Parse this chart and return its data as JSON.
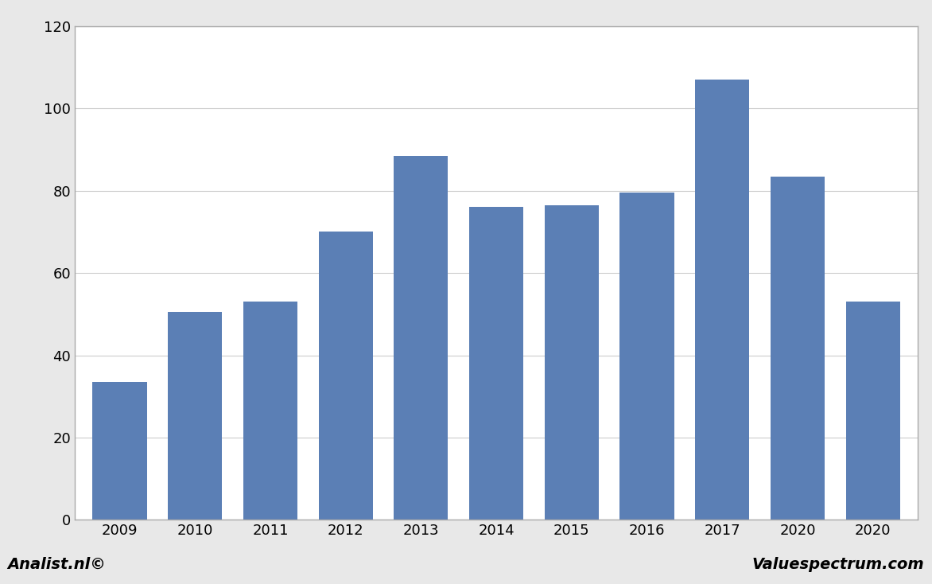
{
  "categories": [
    "2009",
    "2010",
    "2011",
    "2012",
    "2013",
    "2014",
    "2015",
    "2016",
    "2017",
    "2020",
    "2020"
  ],
  "values": [
    33.5,
    50.5,
    53.0,
    70.0,
    88.5,
    76.0,
    76.5,
    79.5,
    107.0,
    83.5,
    53.0
  ],
  "bar_color": "#5b7fb5",
  "ylim": [
    0,
    120
  ],
  "yticks": [
    0,
    20,
    40,
    60,
    80,
    100,
    120
  ],
  "background_color": "#e8e8e8",
  "plot_background_color": "#ffffff",
  "grid_color": "#cccccc",
  "footer_left": "Analist.nl©",
  "footer_right": "Valuespectrum.com",
  "footer_background": "#c8c8c8",
  "spine_color": "#aaaaaa",
  "tick_fontsize": 13,
  "footer_fontsize": 14
}
